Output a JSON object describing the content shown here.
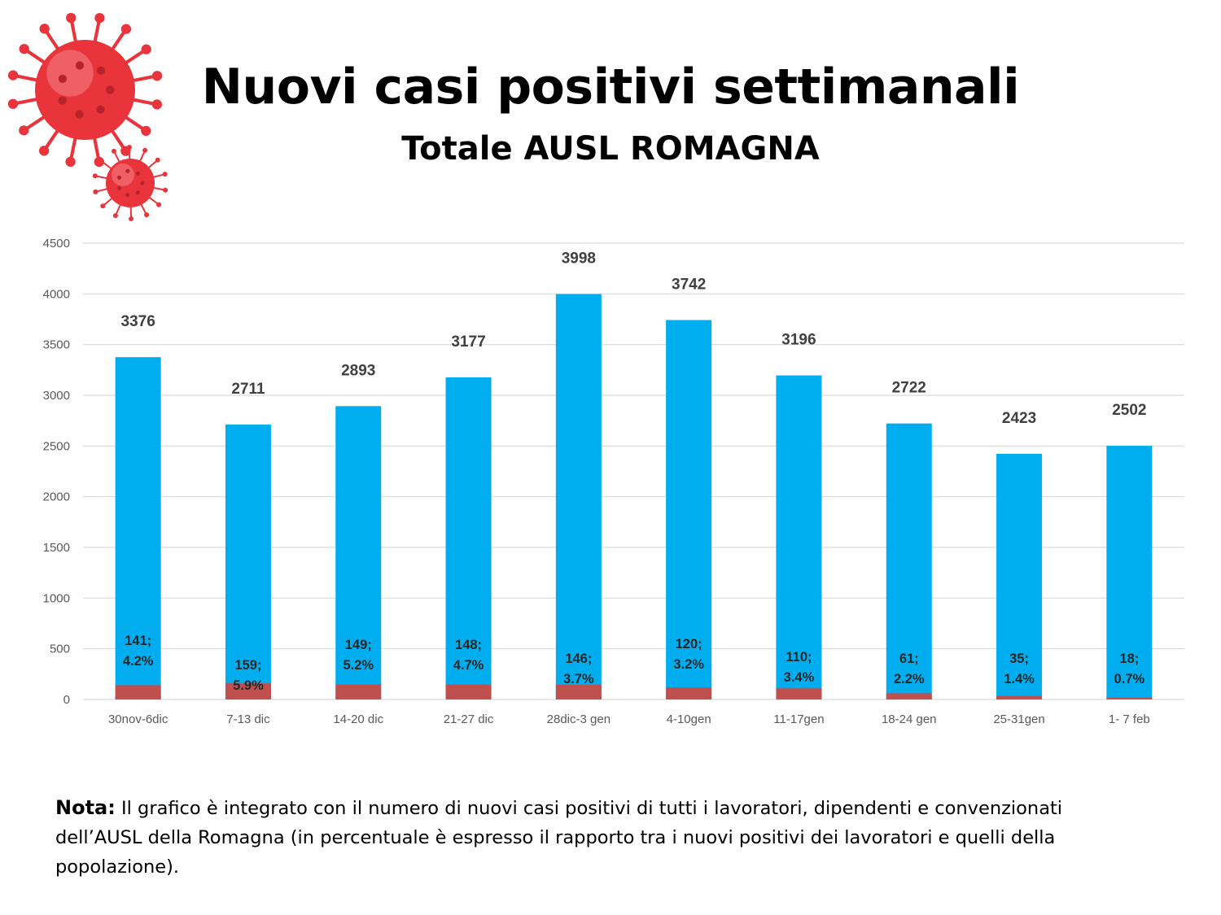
{
  "header": {
    "title": "Nuovi casi positivi settimanali",
    "subtitle": "Totale AUSL ROMAGNA"
  },
  "colors": {
    "population_bar": "#00AEEF",
    "workers_bar": "#C0504D",
    "virus": "#E8343A",
    "grid": "#D9D9D9"
  },
  "chart_data": {
    "type": "bar",
    "title": "Nuovi casi positivi settimanali",
    "subtitle": "Totale AUSL ROMAGNA",
    "categories": [
      "30nov-6dic",
      "7-13 dic",
      "14-20 dic",
      "21-27 dic",
      "28dic-3 gen",
      "4-10gen",
      "11-17gen",
      "18-24 gen",
      "25-31gen",
      "1- 7 feb"
    ],
    "series": [
      {
        "name": "Nuovi casi positivi popolazione",
        "color": "#00AEEF",
        "values": [
          3376,
          2711,
          2893,
          3177,
          3998,
          3742,
          3196,
          2722,
          2423,
          2502
        ]
      },
      {
        "name": "Nuovi casi positivi lavoratori",
        "color": "#C0504D",
        "values": [
          141,
          159,
          149,
          148,
          146,
          120,
          110,
          61,
          35,
          18
        ],
        "percent_labels": [
          "4.2%",
          "5.9%",
          "5.2%",
          "4.7%",
          "3.7%",
          "3.2%",
          "3.4%",
          "2.2%",
          "1.4%",
          "0.7%"
        ]
      }
    ],
    "xlabel": "",
    "ylabel": "",
    "ylim": [
      0,
      4500
    ],
    "yticks": [
      0,
      500,
      1000,
      1500,
      2000,
      2500,
      3000,
      3500,
      4000,
      4500
    ],
    "grid": true,
    "legend": "none"
  },
  "note": {
    "label": "Nota:",
    "text": " Il grafico è integrato con il numero di nuovi casi positivi di tutti i lavoratori, dipendenti e convenzionati dell’AUSL della Romagna (in percentuale è espresso il rapporto tra i nuovi positivi dei lavoratori e quelli della popolazione)."
  }
}
